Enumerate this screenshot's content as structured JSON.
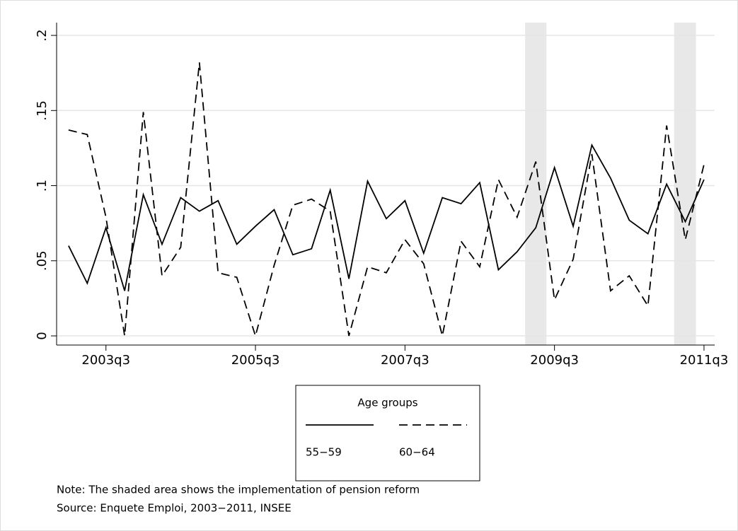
{
  "chart_data": {
    "type": "line",
    "x": [
      172,
      173,
      174,
      175,
      176,
      177,
      178,
      179,
      180,
      181,
      182,
      183,
      184,
      185,
      186,
      187,
      188,
      189,
      190,
      191,
      192,
      193,
      194,
      195,
      196,
      197,
      198,
      199,
      200,
      201,
      202,
      203,
      204,
      205,
      206
    ],
    "series": [
      {
        "name": "55−59",
        "color": "#000000",
        "dash": "solid",
        "values": [
          0.06,
          0.035,
          0.072,
          0.03,
          0.094,
          0.061,
          0.092,
          0.083,
          0.09,
          0.061,
          0.073,
          0.084,
          0.054,
          0.058,
          0.097,
          0.038,
          0.103,
          0.078,
          0.09,
          0.055,
          0.092,
          0.088,
          0.102,
          0.044,
          0.056,
          0.072,
          0.112,
          0.073,
          0.127,
          0.105,
          0.077,
          0.068,
          0.101,
          0.076,
          0.104
        ]
      },
      {
        "name": "60−64",
        "color": "#000000",
        "dash": "dashed",
        "values": [
          0.137,
          0.134,
          0.079,
          0,
          0.149,
          0.04,
          0.059,
          0.182,
          0.042,
          0.039,
          0,
          0.047,
          0.087,
          0.091,
          0.083,
          0,
          0.046,
          0.042,
          0.064,
          0.048,
          0,
          0.063,
          0.046,
          0.104,
          0.079,
          0.116,
          0.024,
          0.051,
          0.121,
          0.03,
          0.04,
          0.02,
          0.14,
          0.064,
          0.114
        ]
      }
    ],
    "xlim": [
      171.36,
      206.57
    ],
    "xticks": [
      {
        "value": 174,
        "label": "2003q3"
      },
      {
        "value": 182,
        "label": "2005q3"
      },
      {
        "value": 190,
        "label": "2007q3"
      },
      {
        "value": 198,
        "label": "2009q3"
      },
      {
        "value": 206,
        "label": "2011q3"
      }
    ],
    "ylim": [
      -0.0061,
      0.2085
    ],
    "yticks": [
      0,
      {
        "value": 0.05,
        "label": ".05"
      },
      {
        "value": 0.1,
        "label": ".1"
      },
      {
        "value": 0.15,
        "label": ".15"
      },
      {
        "value": 0.2,
        "label": ".2"
      }
    ],
    "grid": true,
    "shaded": [
      [
        196.43,
        197.57
      ],
      [
        204.4,
        205.57
      ]
    ],
    "shade_color": "#e8e8e8",
    "legend_title": "Age groups",
    "notes": [
      "Note: The shaded area shows the implementation of pension reform",
      "Source:  Enquete Emploi, 2003−2011, INSEE"
    ]
  }
}
